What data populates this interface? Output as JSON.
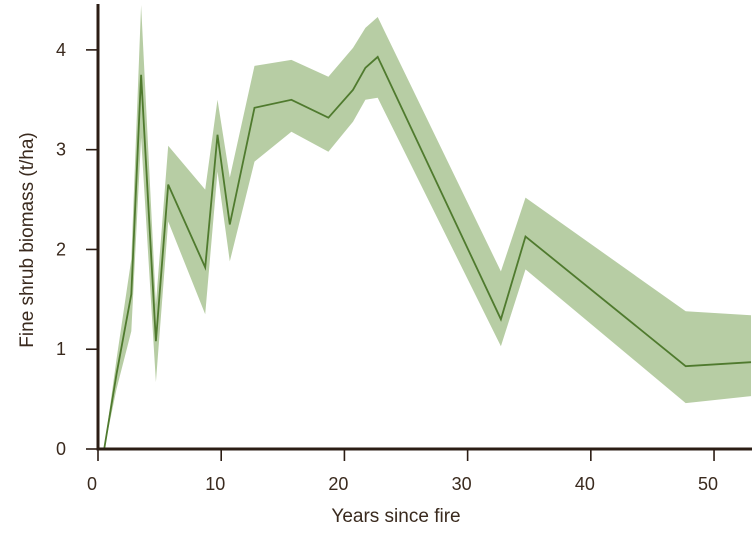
{
  "chart_data": {
    "type": "area",
    "xlabel": "Years since fire",
    "ylabel": "Fine shrub biomass (t/ha)",
    "xlim": [
      0,
      53
    ],
    "ylim": [
      0,
      4.5
    ],
    "x_ticks": [
      0,
      10,
      20,
      30,
      40,
      50
    ],
    "y_ticks": [
      0,
      1,
      2,
      3,
      4
    ],
    "grid": false,
    "colors": {
      "line": "#4f7a2e",
      "band": "#b7cda4",
      "axis": "#2b1d14",
      "text": "#3a2a1e"
    },
    "series": [
      {
        "x": [
          0.5,
          1.5,
          2.7,
          3.5,
          4.7,
          5.7,
          8.7,
          9.7,
          10.7,
          12.7,
          15.7,
          18.7,
          20.7,
          21.7,
          22.7,
          32.7,
          34.7,
          47.7,
          53
        ],
        "y": [
          0.0,
          0.75,
          1.55,
          3.75,
          1.08,
          2.65,
          1.82,
          3.15,
          2.25,
          3.42,
          3.5,
          3.32,
          3.6,
          3.82,
          3.93,
          1.3,
          2.13,
          0.83,
          0.87
        ],
        "lower": [
          0.0,
          0.6,
          1.18,
          3.12,
          0.67,
          2.28,
          1.35,
          2.78,
          1.88,
          2.88,
          3.18,
          2.98,
          3.28,
          3.5,
          3.52,
          1.03,
          1.8,
          0.46,
          0.53
        ],
        "upper": [
          0.0,
          0.9,
          1.9,
          4.45,
          1.45,
          3.04,
          2.6,
          3.5,
          2.72,
          3.84,
          3.9,
          3.73,
          4.02,
          4.22,
          4.33,
          1.78,
          2.52,
          1.38,
          1.34
        ]
      }
    ]
  }
}
